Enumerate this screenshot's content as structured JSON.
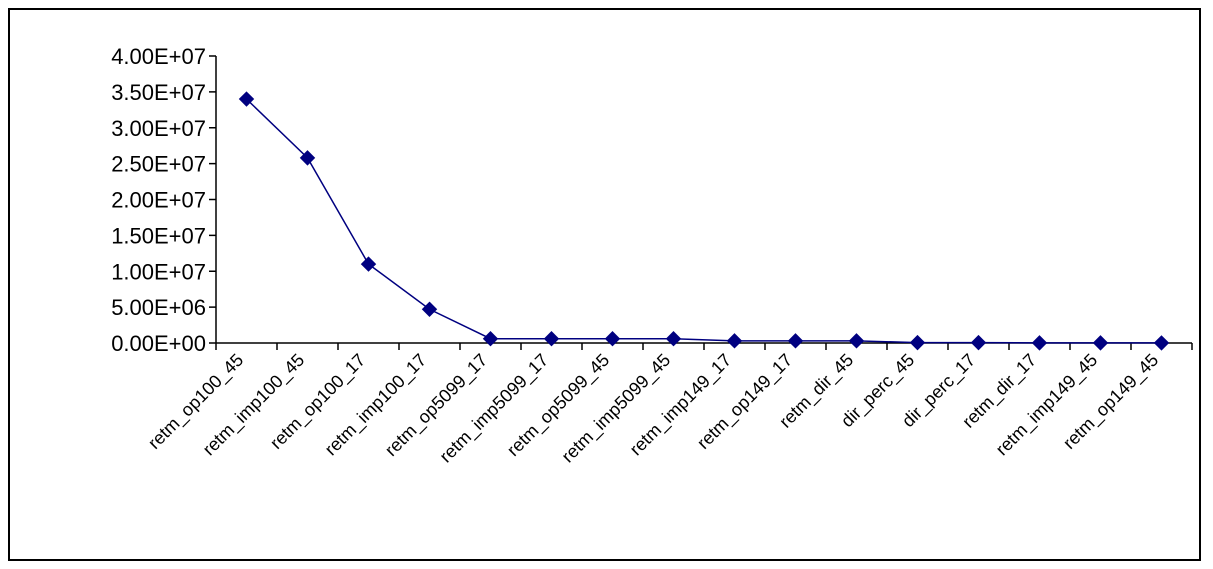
{
  "chart_data": {
    "type": "line",
    "categories": [
      "retm_op100_45",
      "retm_imp100_45",
      "retm_op100_17",
      "retm_imp100_17",
      "retm_op5099_17",
      "retm_imp5099_17",
      "retm_op5099_45",
      "retm_imp5099_45",
      "retm_imp149_17",
      "retm_op149_17",
      "retm_dir_45",
      "dir_perc_45",
      "dir_perc_17",
      "retm_dir_17",
      "retm_imp149_45",
      "retm_op149_45"
    ],
    "series": [
      {
        "values": [
          34000000,
          25800000,
          11000000,
          4700000,
          600000,
          600000,
          600000,
          600000,
          300000,
          300000,
          300000,
          50000,
          50000,
          20000,
          20000,
          10000
        ],
        "color": "#000080",
        "marker": "diamond"
      }
    ],
    "y_ticks": [
      "0.00E+00",
      "5.00E+06",
      "1.00E+07",
      "1.50E+07",
      "2.00E+07",
      "2.50E+07",
      "3.00E+07",
      "3.50E+07",
      "4.00E+07"
    ],
    "ylim": [
      0,
      40000000
    ],
    "grid": false,
    "legend": "none",
    "title": "",
    "xlabel": "",
    "ylabel": ""
  }
}
